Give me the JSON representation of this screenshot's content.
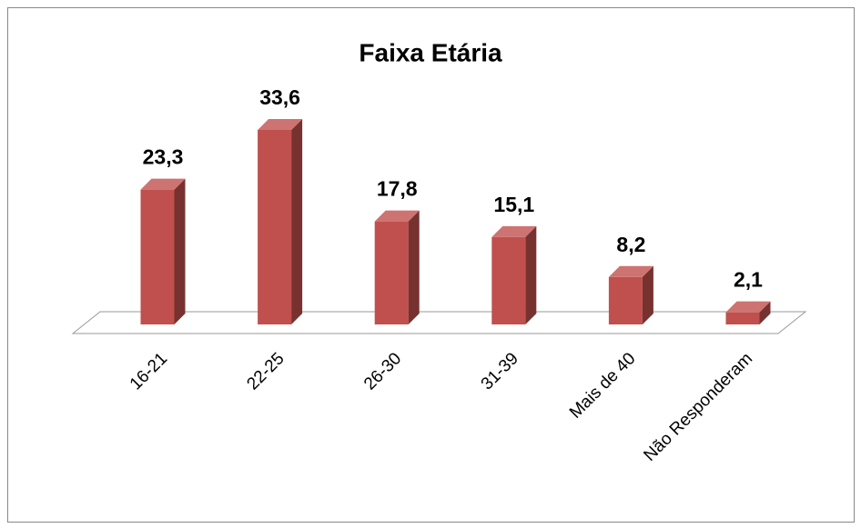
{
  "chart_data": {
    "type": "bar3d",
    "title": "Faixa Etária",
    "categories": [
      "16-21",
      "22-25",
      "26-30",
      "31-39",
      "Mais de 40",
      "Não Responderam"
    ],
    "values": [
      23.3,
      33.6,
      17.8,
      15.1,
      8.2,
      2.1
    ],
    "value_labels": [
      "23,3",
      "33,6",
      "17,8",
      "15,1",
      "8,2",
      "2,1"
    ],
    "color": "#c0504d"
  }
}
